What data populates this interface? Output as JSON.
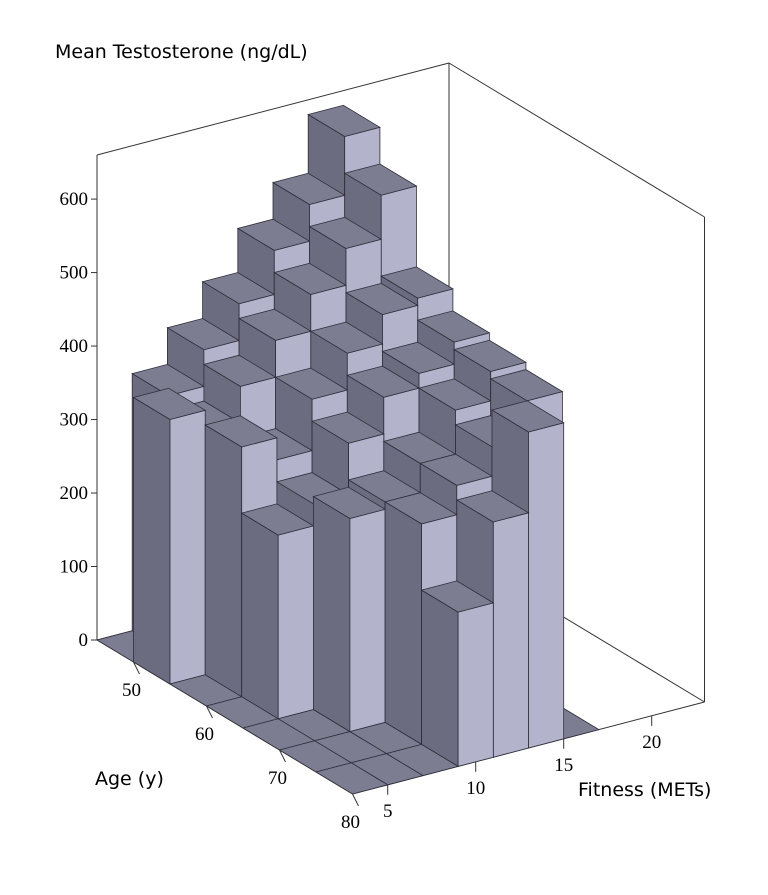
{
  "chart_data": {
    "type": "bar3d",
    "title": "Mean Testosterone (ng/dL)",
    "x_label": "Fitness (METs)",
    "y_label": "Age (y)",
    "fitness_bins": [
      3,
      5,
      7,
      9,
      11,
      13,
      15,
      17
    ],
    "age_bins": [
      45,
      50,
      55,
      60,
      65,
      70,
      75,
      80
    ],
    "values": [
      [
        0,
        350,
        400,
        450,
        510,
        560,
        640
      ],
      [
        360,
        330,
        380,
        430,
        480,
        530,
        590
      ],
      [
        0,
        340,
        310,
        380,
        430,
        470,
        480
      ],
      [
        0,
        250,
        280,
        350,
        400,
        420,
        450
      ],
      [
        0,
        0,
        290,
        300,
        340,
        400,
        440
      ],
      [
        0,
        0,
        0,
        300,
        340,
        380,
        430
      ],
      [
        0,
        0,
        0,
        210,
        320,
        430,
        0
      ]
    ],
    "colors": {
      "top": "#7d7d92",
      "side": "#6c6c80",
      "front": "#b3b3cc"
    },
    "xlim": [
      3,
      23
    ],
    "ylim": [
      45,
      80
    ],
    "zlim": [
      0,
      660
    ],
    "xticks": [
      5,
      10,
      15,
      20
    ],
    "yticks": [
      50,
      60,
      70,
      80
    ],
    "zticks": [
      0,
      100,
      200,
      300,
      400,
      500,
      600
    ]
  }
}
